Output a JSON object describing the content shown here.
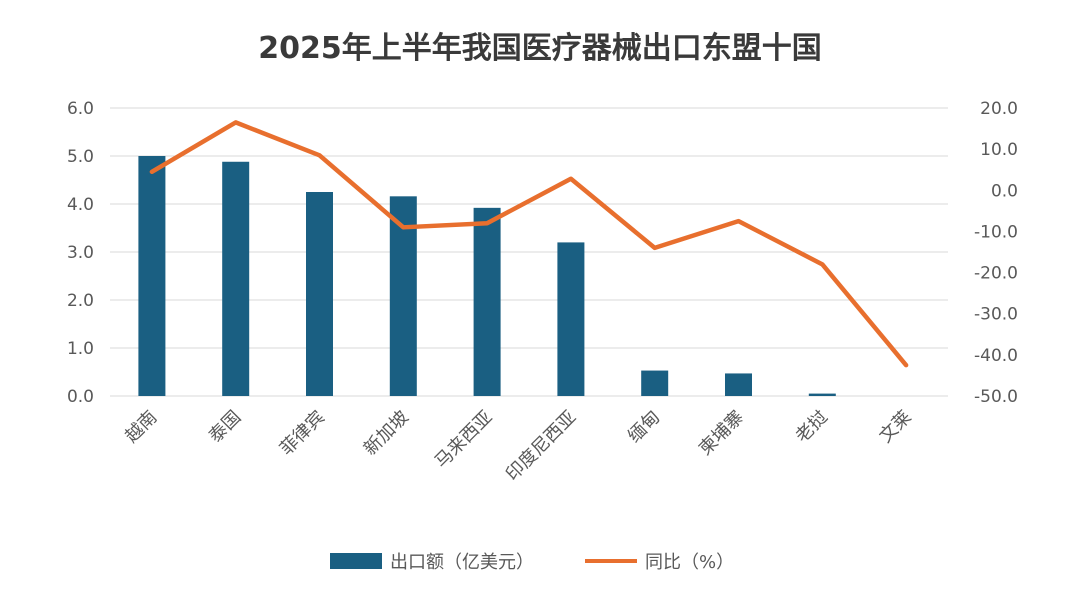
{
  "chart_data": {
    "type": "bar+line",
    "title": "2025年上半年我国医疗器械出口东盟十国",
    "categories": [
      "越南",
      "泰国",
      "菲律宾",
      "新加坡",
      "马来西亚",
      "印度尼西亚",
      "缅甸",
      "柬埔寨",
      "老挝",
      "文莱"
    ],
    "series": [
      {
        "name": "出口额（亿美元）",
        "kind": "bar",
        "axis": "left",
        "color": "#1a5f82",
        "values": [
          5.0,
          4.88,
          4.25,
          4.16,
          3.92,
          3.2,
          0.53,
          0.47,
          0.05,
          0.0
        ]
      },
      {
        "name": "同比（%）",
        "kind": "line",
        "axis": "right",
        "color": "#e86f2e",
        "values": [
          4.5,
          16.5,
          8.5,
          -9.0,
          -8.0,
          2.8,
          -14.0,
          -7.5,
          -18.0,
          -42.5
        ]
      }
    ],
    "left_axis": {
      "min": 0,
      "max": 6,
      "step": 1,
      "tick_labels": [
        "0.0",
        "1.0",
        "2.0",
        "3.0",
        "4.0",
        "5.0",
        "6.0"
      ]
    },
    "right_axis": {
      "min": -50,
      "max": 20,
      "step": 10,
      "tick_labels": [
        "-50.0",
        "-40.0",
        "-30.0",
        "-20.0",
        "-10.0",
        "0.0",
        "10.0",
        "20.0"
      ]
    },
    "grid": true,
    "legend": "bottom-center"
  }
}
